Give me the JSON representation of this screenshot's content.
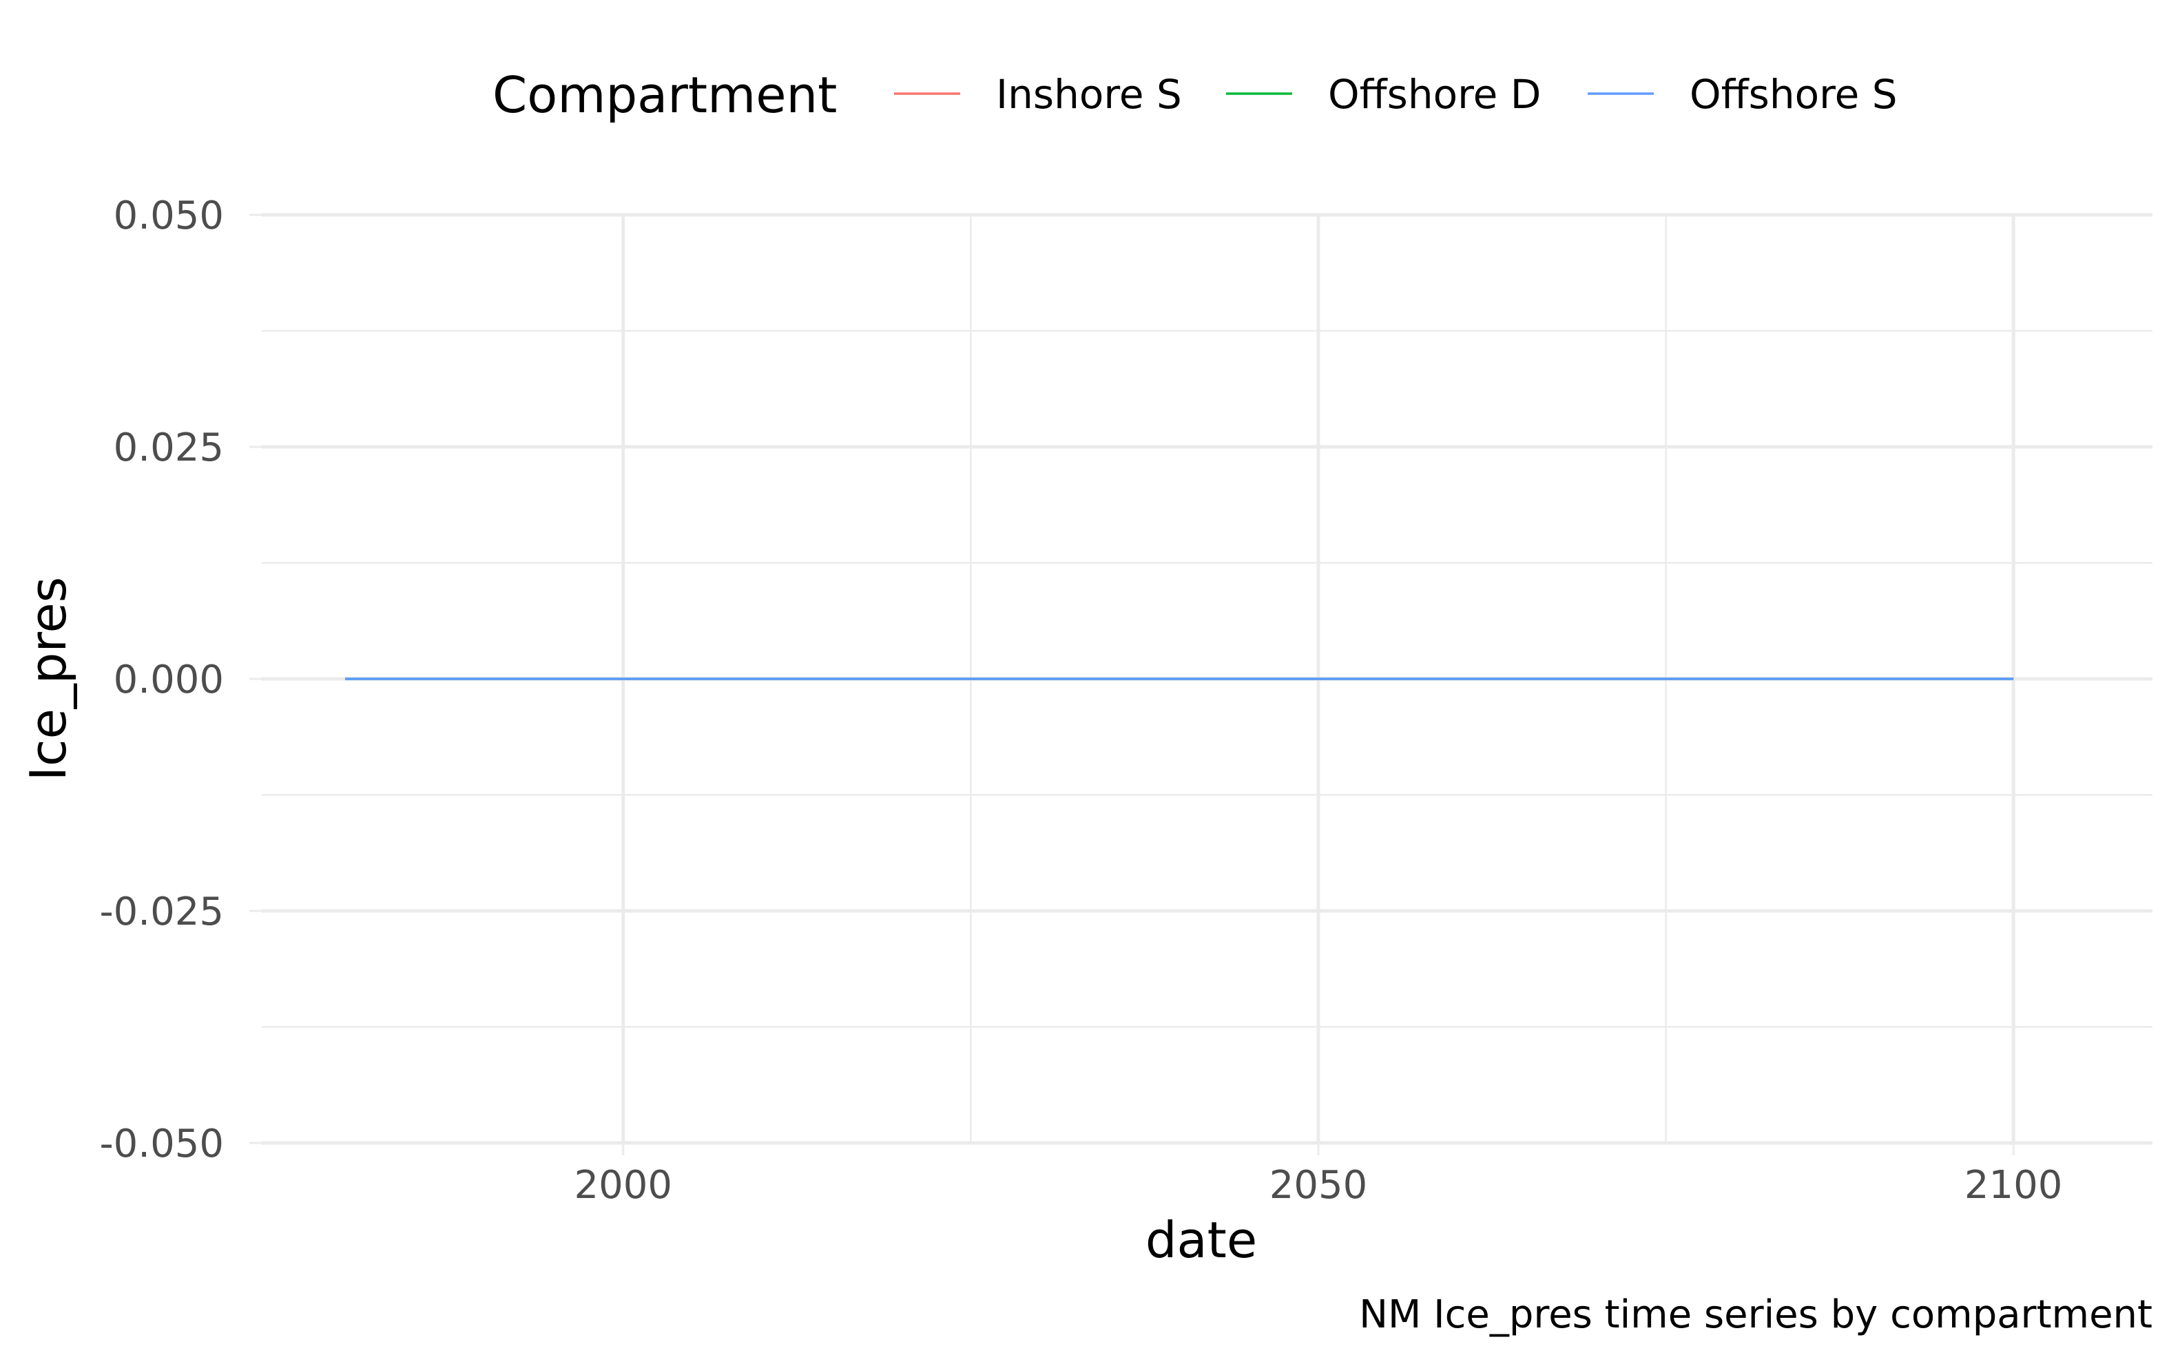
{
  "chart_data": {
    "type": "line",
    "xlabel": "date",
    "ylabel": "Ice_pres",
    "caption": "NM Ice_pres time series by compartment",
    "legend": {
      "title": "Compartment",
      "placement": "top",
      "entries": [
        {
          "label": "Inshore S",
          "color": "#F8766D"
        },
        {
          "label": "Offshore D",
          "color": "#00BA38"
        },
        {
          "label": "Offshore S",
          "color": "#619CFF"
        }
      ]
    },
    "xlim": [
      1974,
      2110
    ],
    "ylim": [
      -0.05,
      0.05
    ],
    "x_ticks": [
      2000,
      2050,
      2100
    ],
    "x_tick_labels": [
      "2000",
      "2050",
      "2100"
    ],
    "y_ticks": [
      -0.05,
      -0.025,
      0,
      0.025,
      0.05
    ],
    "y_tick_labels": [
      "-0.050",
      "-0.025",
      "0.000",
      "0.025",
      "0.050"
    ],
    "grid": true,
    "series": [
      {
        "name": "Inshore S",
        "color": "#F8766D",
        "x": [
          1980,
          2100
        ],
        "y": [
          0,
          0
        ]
      },
      {
        "name": "Offshore D",
        "color": "#00BA38",
        "x": [
          1980,
          2100
        ],
        "y": [
          0,
          0
        ]
      },
      {
        "name": "Offshore S",
        "color": "#619CFF",
        "x": [
          1980,
          2100
        ],
        "y": [
          0,
          0
        ]
      }
    ]
  }
}
